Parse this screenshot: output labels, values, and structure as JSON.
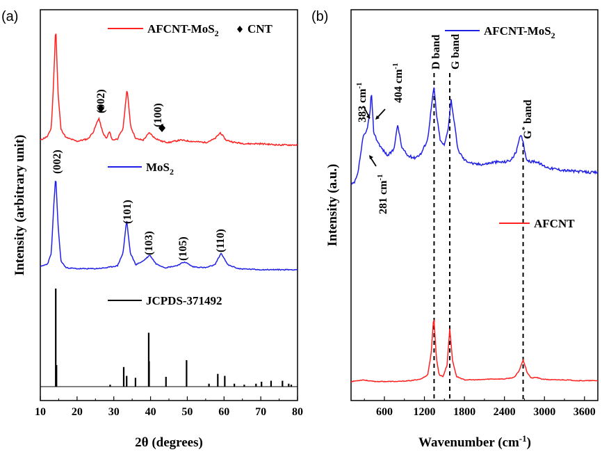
{
  "chart_data": [
    {
      "panel": "(a)",
      "type": "line",
      "xlabel": "2θ (degrees)",
      "ylabel": "Intensity (arbitrary unit)",
      "xlim": [
        10,
        80
      ],
      "x_ticks": [
        "10",
        "20",
        "30",
        "40",
        "50",
        "60",
        "70",
        "80"
      ],
      "colors": {
        "afcnt_mos2": "#ff2020",
        "mos2": "#1f1fe6",
        "jcpds": "#000000"
      },
      "legend": {
        "afcnt_mos2": {
          "base": "AFCNT-MoS",
          "sub": "2"
        },
        "cnt": "CNT",
        "mos2": {
          "base": "MoS",
          "sub": "2"
        },
        "jcpds": "JCPDS-371492"
      },
      "series": [
        {
          "name": "AFCNT-MoS2",
          "x": [
            10,
            12,
            13,
            13.6,
            14.2,
            14.8,
            15.6,
            17,
            20,
            23,
            24.5,
            25.9,
            27,
            28,
            28.8,
            29.6,
            31,
            32.5,
            33.6,
            34.6,
            36,
            38,
            39.7,
            41,
            43,
            45,
            48,
            51,
            55,
            57.5,
            59,
            60.5,
            63,
            66,
            70,
            75,
            80
          ],
          "values": [
            0.06,
            0.09,
            0.16,
            0.52,
            1.0,
            0.45,
            0.15,
            0.08,
            0.05,
            0.07,
            0.13,
            0.24,
            0.12,
            0.07,
            0.13,
            0.06,
            0.07,
            0.15,
            0.48,
            0.17,
            0.07,
            0.06,
            0.12,
            0.08,
            0.05,
            0.04,
            0.06,
            0.05,
            0.04,
            0.07,
            0.12,
            0.06,
            0.04,
            0.03,
            0.03,
            0.02,
            0.02
          ]
        },
        {
          "name": "MoS2",
          "x": [
            10,
            12,
            13,
            13.6,
            14.2,
            14.8,
            15.6,
            17,
            20,
            25,
            28,
            31,
            32.5,
            33.5,
            34.5,
            36,
            38,
            39.8,
            41.5,
            44,
            47,
            49.3,
            51.5,
            55,
            57.5,
            59.2,
            61,
            64,
            70,
            75,
            80
          ],
          "values": [
            0.06,
            0.09,
            0.2,
            0.65,
            1.0,
            0.5,
            0.12,
            0.05,
            0.04,
            0.04,
            0.05,
            0.07,
            0.2,
            0.54,
            0.2,
            0.08,
            0.12,
            0.18,
            0.09,
            0.05,
            0.07,
            0.11,
            0.06,
            0.05,
            0.08,
            0.2,
            0.08,
            0.04,
            0.03,
            0.03,
            0.03
          ]
        },
        {
          "name": "JCPDS-371492",
          "type": "stick",
          "x": [
            14.2,
            14.4,
            29.0,
            32.7,
            33.5,
            35.9,
            39.5,
            39.6,
            44.2,
            49.8,
            55.9,
            58.3,
            60.2,
            62.8,
            65.5,
            68.7,
            70.2,
            72.8,
            75.9,
            77.6,
            78.3
          ],
          "values": [
            1.0,
            0.22,
            0.02,
            0.2,
            0.11,
            0.09,
            0.55,
            0.26,
            0.1,
            0.27,
            0.03,
            0.13,
            0.11,
            0.03,
            0.02,
            0.03,
            0.05,
            0.06,
            0.06,
            0.03,
            0.02
          ]
        }
      ],
      "annotations": [
        {
          "text": "(002)",
          "x": 27
        },
        {
          "text": "(100)",
          "x": 44
        },
        {
          "text": "(002)",
          "x": 14.2
        },
        {
          "text": "(101)",
          "x": 33.6
        },
        {
          "text": "(103)",
          "x": 39.8
        },
        {
          "text": "(105)",
          "x": 49.3
        },
        {
          "text": "(110)",
          "x": 59.2
        }
      ]
    },
    {
      "panel": "(b)",
      "type": "line",
      "xlabel": {
        "base": "Wavenumber (cm",
        "sup": "-1",
        "end": ")"
      },
      "ylabel": "Intensity (a.u.)",
      "xlim": [
        100,
        3800
      ],
      "x_ticks": [
        "600",
        "1200",
        "1800",
        "2400",
        "3000",
        "3600"
      ],
      "colors": {
        "afcnt_mos2": "#1f1fe6",
        "afcnt": "#ff2020"
      },
      "legend": {
        "afcnt_mos2": {
          "base": "AFCNT-MoS",
          "sub": "2"
        },
        "afcnt": "AFCNT"
      },
      "series": [
        {
          "name": "AFCNT-MoS2",
          "x": [
            100,
            150,
            200,
            240,
            281,
            330,
            383,
            395,
            404,
            415,
            440,
            480,
            550,
            650,
            740,
            800,
            860,
            950,
            1050,
            1150,
            1250,
            1310,
            1345,
            1380,
            1440,
            1500,
            1560,
            1600,
            1640,
            1700,
            1800,
            1950,
            2100,
            2250,
            2400,
            2500,
            2580,
            2640,
            2680,
            2720,
            2780,
            2850,
            2920,
            3000,
            3100,
            3300,
            3500,
            3700,
            3800
          ],
          "values": [
            0.04,
            0.06,
            0.14,
            0.32,
            0.5,
            0.55,
            0.72,
            0.84,
            0.95,
            0.8,
            0.55,
            0.48,
            0.4,
            0.32,
            0.38,
            0.62,
            0.4,
            0.32,
            0.3,
            0.34,
            0.48,
            0.82,
            0.98,
            0.72,
            0.46,
            0.42,
            0.6,
            0.86,
            0.68,
            0.38,
            0.28,
            0.24,
            0.24,
            0.26,
            0.26,
            0.28,
            0.36,
            0.52,
            0.46,
            0.3,
            0.26,
            0.27,
            0.25,
            0.22,
            0.2,
            0.18,
            0.17,
            0.16,
            0.16
          ]
        },
        {
          "name": "AFCNT",
          "x": [
            100,
            200,
            280,
            350,
            450,
            600,
            800,
            1000,
            1150,
            1250,
            1300,
            1340,
            1380,
            1420,
            1480,
            1540,
            1580,
            1620,
            1680,
            1800,
            2000,
            2200,
            2400,
            2550,
            2620,
            2680,
            2740,
            2800,
            2880,
            2950,
            3100,
            3300,
            3500,
            3700,
            3800
          ],
          "values": [
            0.02,
            0.03,
            0.04,
            0.03,
            0.02,
            0.02,
            0.02,
            0.03,
            0.05,
            0.1,
            0.35,
            0.8,
            0.3,
            0.1,
            0.08,
            0.22,
            0.65,
            0.28,
            0.08,
            0.04,
            0.04,
            0.05,
            0.05,
            0.07,
            0.15,
            0.28,
            0.13,
            0.06,
            0.07,
            0.05,
            0.04,
            0.04,
            0.03,
            0.03,
            0.03
          ]
        }
      ],
      "annotations": [
        {
          "text": "383 cm",
          "sup": "-1"
        },
        {
          "text": "404 cm",
          "sup": "-1"
        },
        {
          "text": "281 cm",
          "sup": "-1"
        },
        {
          "text": "D band",
          "x": 1345
        },
        {
          "text": "G band",
          "x": 1580
        },
        {
          "text": "G",
          "sup": "*",
          "end": " band",
          "x": 2680
        }
      ]
    }
  ]
}
